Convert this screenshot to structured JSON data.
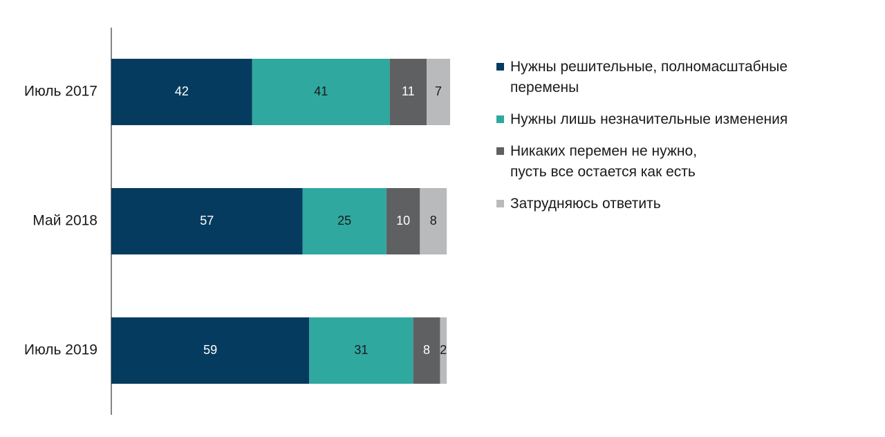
{
  "chart_data": {
    "type": "bar",
    "orientation": "horizontal",
    "stacked": true,
    "categories": [
      "Июль 2017",
      "Май 2018",
      "Июль 2019"
    ],
    "series": [
      {
        "name": "Нужны решительные, полномасштабные\nперемены",
        "color": "#053b5e",
        "label_color": "#ffffff",
        "values": [
          42,
          57,
          59
        ]
      },
      {
        "name": "Нужны лишь незначительные изменения",
        "color": "#2fa8a0",
        "label_color": "#1a1a1a",
        "values": [
          41,
          25,
          31
        ]
      },
      {
        "name": "Никаких перемен не нужно,\nпусть все остается как есть",
        "color": "#5e6062",
        "label_color": "#ffffff",
        "values": [
          11,
          10,
          8
        ]
      },
      {
        "name": "Затрудняюсь ответить",
        "color": "#b8babc",
        "label_color": "#1a1a1a",
        "values": [
          7,
          8,
          2
        ]
      }
    ],
    "xlim": [
      0,
      101
    ],
    "grid": false,
    "legend_position": "right"
  }
}
